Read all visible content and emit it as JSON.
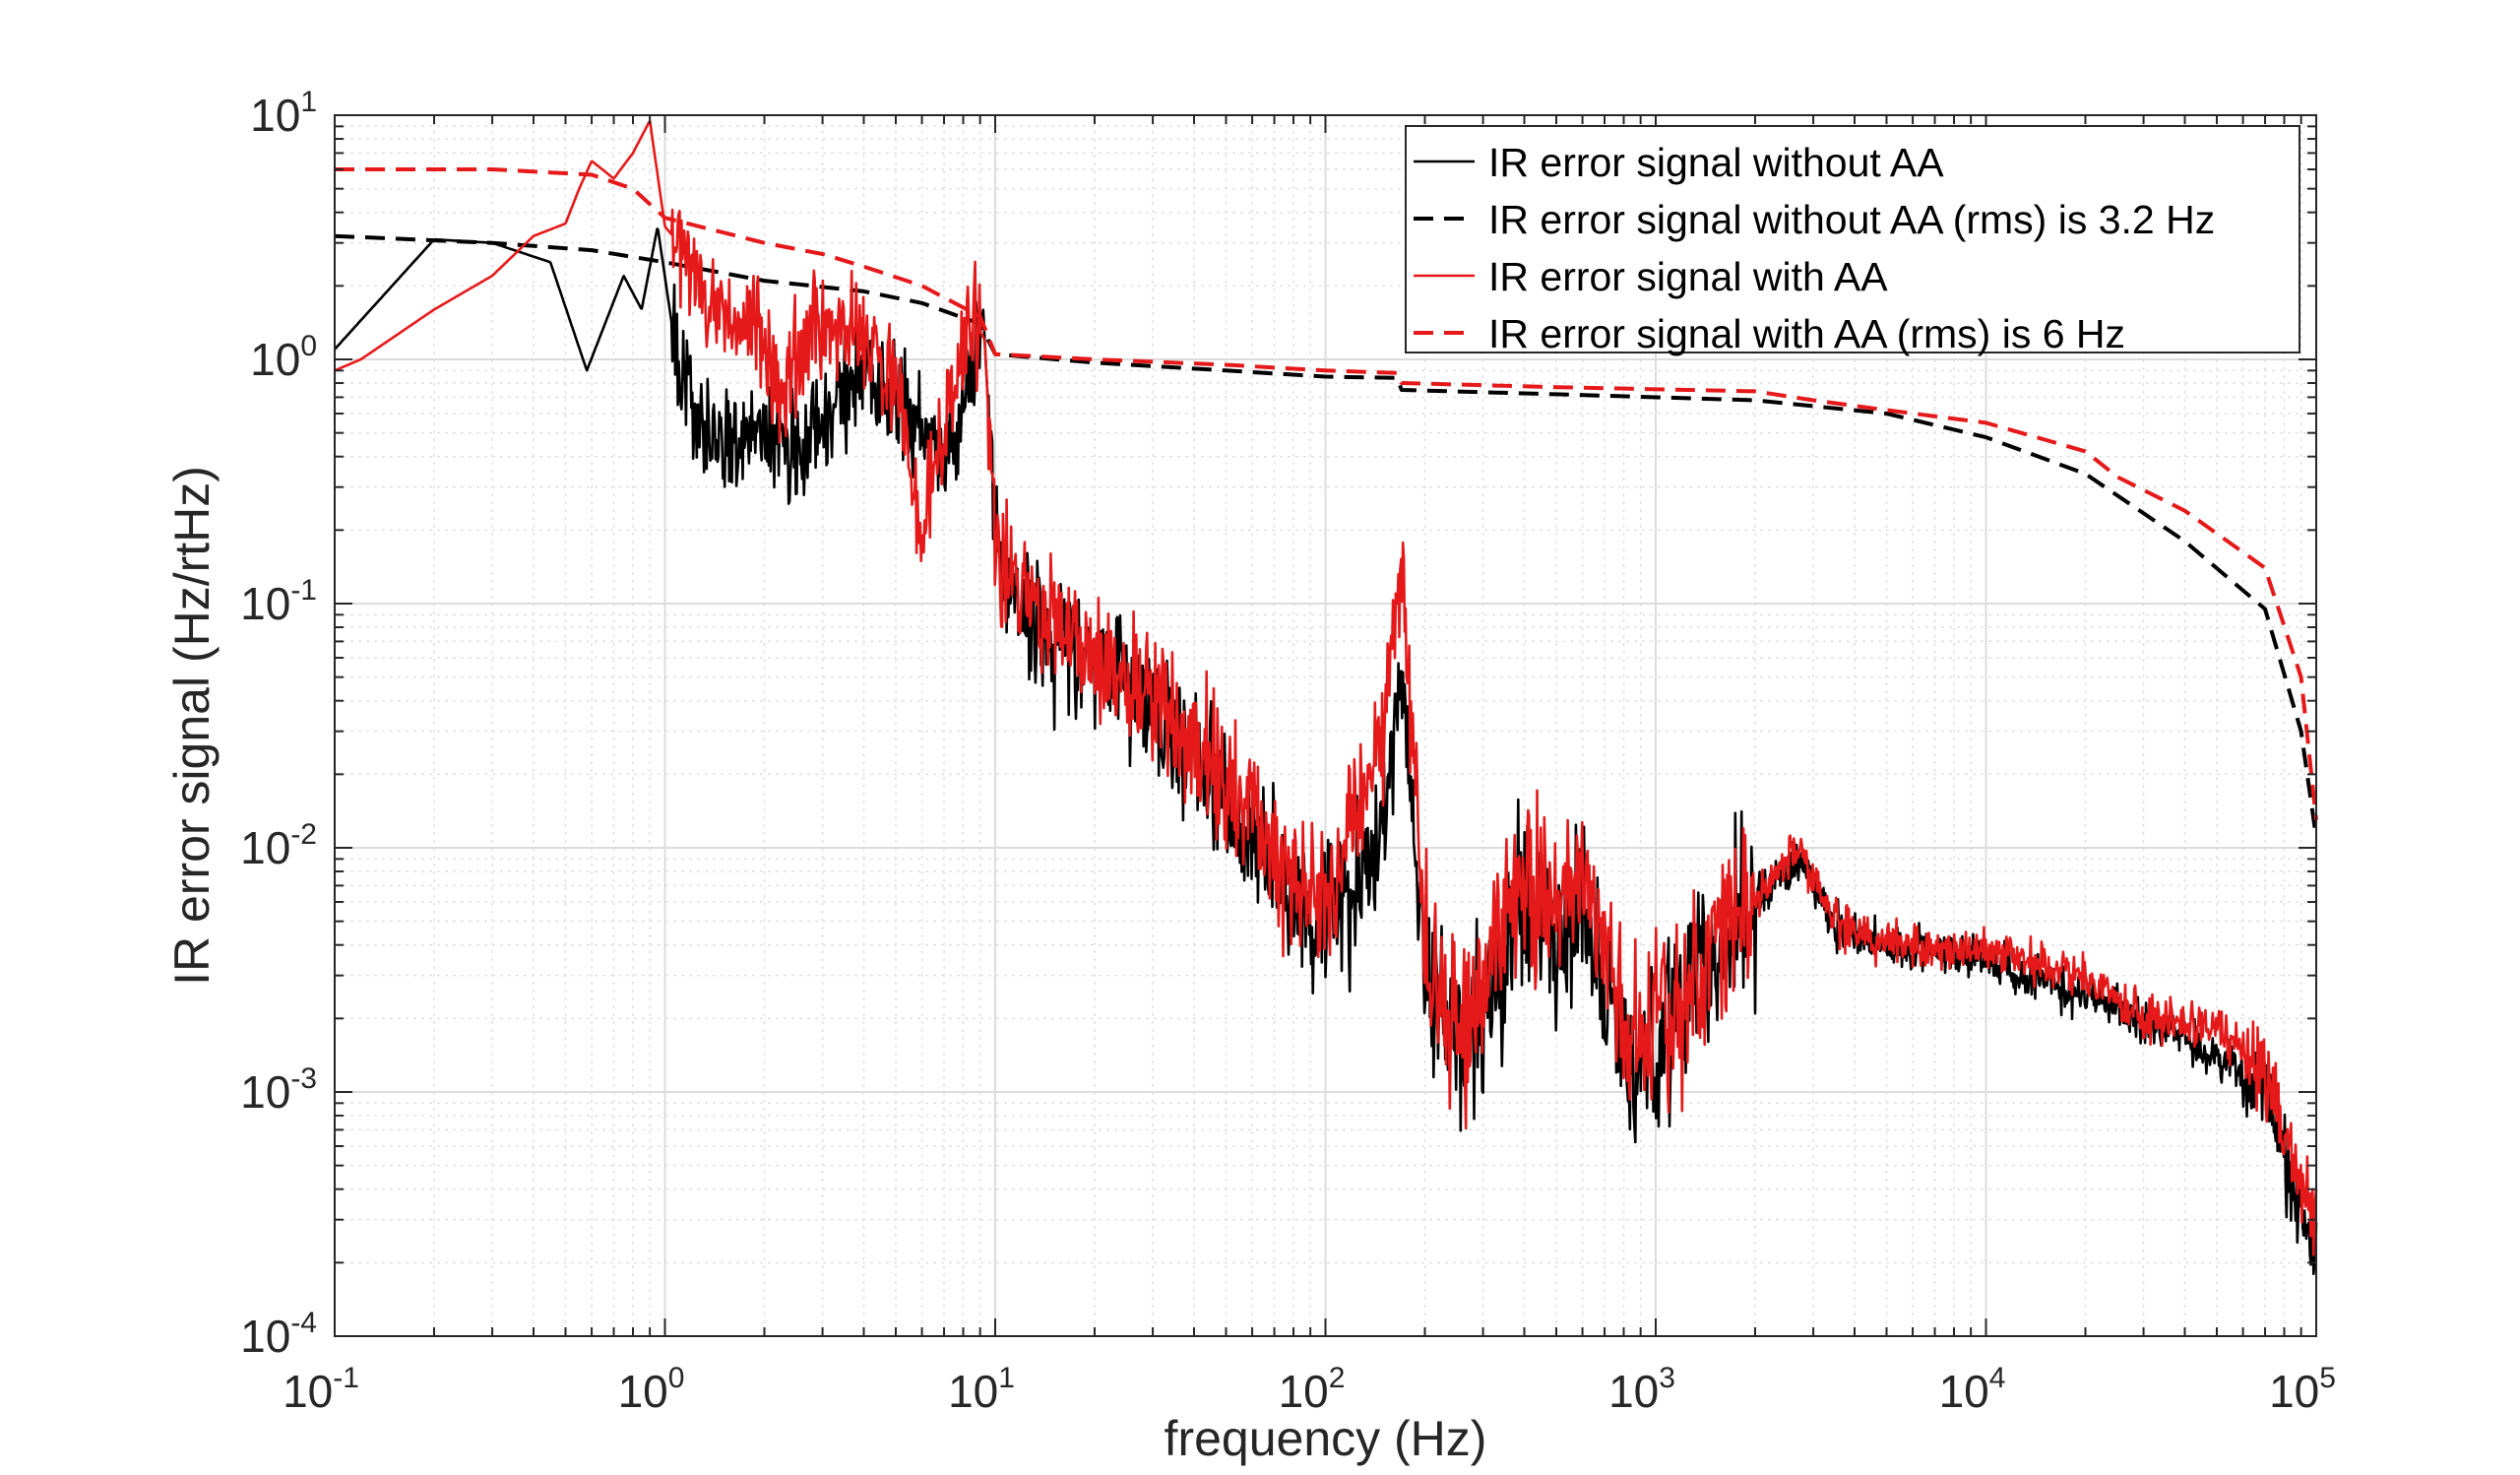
{
  "chart_data": {
    "type": "line",
    "xlabel": "frequency (Hz)",
    "ylabel": "IR error signal (Hz/rtHz)",
    "xscale": "log",
    "yscale": "log",
    "xlim": [
      0.1,
      100000
    ],
    "ylim": [
      0.0001,
      10
    ],
    "grid": true,
    "legend_position": "top-right",
    "x_ticks": [
      {
        "base": "10",
        "exp": "-1"
      },
      {
        "base": "10",
        "exp": "0"
      },
      {
        "base": "10",
        "exp": "1"
      },
      {
        "base": "10",
        "exp": "2"
      },
      {
        "base": "10",
        "exp": "3"
      },
      {
        "base": "10",
        "exp": "4"
      },
      {
        "base": "10",
        "exp": "5"
      }
    ],
    "y_ticks": [
      {
        "base": "10",
        "exp": "-4"
      },
      {
        "base": "10",
        "exp": "-3"
      },
      {
        "base": "10",
        "exp": "-2"
      },
      {
        "base": "10",
        "exp": "-1"
      },
      {
        "base": "10",
        "exp": "0"
      },
      {
        "base": "10",
        "exp": "1"
      }
    ],
    "series": [
      {
        "name": "IR error signal without AA",
        "color": "#000000",
        "style": "solid",
        "x": [
          0.1,
          0.2,
          0.3,
          0.45,
          0.58,
          0.75,
          0.85,
          0.95,
          1.1,
          1.3,
          1.6,
          2.0,
          2.5,
          3.2,
          4,
          5,
          6,
          7,
          8,
          9.2,
          9.6,
          10.5,
          15,
          20,
          30,
          50,
          70,
          90,
          100,
          120,
          150,
          170,
          200,
          250,
          300,
          400,
          500,
          600,
          700,
          800,
          1000,
          1300,
          2000,
          2700,
          3500,
          5000,
          10000,
          20000,
          30000,
          50000,
          70000,
          80000,
          100000
        ],
        "y": [
          1.1,
          3.1,
          3.0,
          2.5,
          0.9,
          2.2,
          1.6,
          3.5,
          0.9,
          0.6,
          0.45,
          0.5,
          0.4,
          0.65,
          0.9,
          0.6,
          0.5,
          0.4,
          0.6,
          1.6,
          0.5,
          0.12,
          0.075,
          0.06,
          0.04,
          0.015,
          0.008,
          0.005,
          0.0055,
          0.006,
          0.012,
          0.05,
          0.0035,
          0.0015,
          0.002,
          0.007,
          0.004,
          0.006,
          0.003,
          0.0014,
          0.0015,
          0.003,
          0.006,
          0.009,
          0.005,
          0.004,
          0.0035,
          0.0025,
          0.002,
          0.0014,
          0.001,
          0.0005,
          0.0002
        ]
      },
      {
        "name": "IR error signal without AA (rms) is 3.2 Hz",
        "color": "#000000",
        "style": "dashed",
        "x": [
          0.1,
          0.3,
          0.6,
          1.0,
          2.0,
          4.0,
          6.0,
          9.0,
          10.0,
          20.0,
          50.0,
          100.0,
          165.0,
          170.0,
          500.0,
          2000.0,
          5000.0,
          10000.0,
          20000.0,
          40000.0,
          70000.0,
          90000.0,
          100000.0
        ],
        "y": [
          3.2,
          3.0,
          2.8,
          2.5,
          2.1,
          1.9,
          1.7,
          1.4,
          1.05,
          0.97,
          0.9,
          0.85,
          0.84,
          0.75,
          0.72,
          0.68,
          0.6,
          0.48,
          0.34,
          0.18,
          0.095,
          0.03,
          0.011
        ]
      },
      {
        "name": "IR error signal with AA",
        "color": "#e6191a",
        "style": "solid",
        "x": [
          0.1,
          0.12,
          0.2,
          0.3,
          0.4,
          0.5,
          0.55,
          0.6,
          0.7,
          0.8,
          0.9,
          1.0,
          1.1,
          1.3,
          1.6,
          1.9,
          2.2,
          2.5,
          3.0,
          4.0,
          5.0,
          6.0,
          7.0,
          8.5,
          9.3,
          10.0,
          15,
          20,
          30,
          50,
          70,
          90,
          100,
          120,
          150,
          170,
          200,
          250,
          300,
          400,
          500,
          600,
          700,
          800,
          1000,
          1300,
          2000,
          2700,
          3500,
          5000,
          10000,
          20000,
          30000,
          50000,
          70000,
          80000,
          100000
        ],
        "y": [
          0.9,
          1.0,
          1.6,
          2.2,
          3.2,
          3.6,
          5.0,
          6.5,
          5.5,
          7.0,
          9.5,
          3.5,
          3.0,
          2.0,
          1.3,
          1.5,
          0.7,
          1.0,
          1.5,
          1.2,
          0.8,
          0.2,
          0.5,
          1.5,
          1.2,
          0.15,
          0.08,
          0.06,
          0.04,
          0.018,
          0.009,
          0.007,
          0.006,
          0.012,
          0.03,
          0.17,
          0.004,
          0.0017,
          0.0025,
          0.008,
          0.005,
          0.007,
          0.004,
          0.0015,
          0.0016,
          0.0032,
          0.006,
          0.01,
          0.005,
          0.004,
          0.0038,
          0.003,
          0.002,
          0.0018,
          0.0012,
          0.0006,
          0.0003
        ]
      },
      {
        "name": "IR error signal with AA (rms) is 6 Hz",
        "color": "#e6191a",
        "style": "dashed",
        "x": [
          0.1,
          0.3,
          0.6,
          0.8,
          1.0,
          2.0,
          3.0,
          4.0,
          6.0,
          9.0,
          10.0,
          20.0,
          50.0,
          100.0,
          165.0,
          170.0,
          500.0,
          2000.0,
          3000.0,
          5000.0,
          10000.0,
          20000.0,
          25000.0,
          40000.0,
          70000.0,
          90000.0,
          100000.0
        ],
        "y": [
          6.0,
          6.0,
          5.7,
          5.0,
          3.8,
          3.0,
          2.7,
          2.4,
          2.0,
          1.5,
          1.05,
          1.0,
          0.95,
          0.9,
          0.88,
          0.8,
          0.77,
          0.74,
          0.68,
          0.62,
          0.55,
          0.42,
          0.33,
          0.24,
          0.14,
          0.05,
          0.013
        ]
      }
    ]
  }
}
